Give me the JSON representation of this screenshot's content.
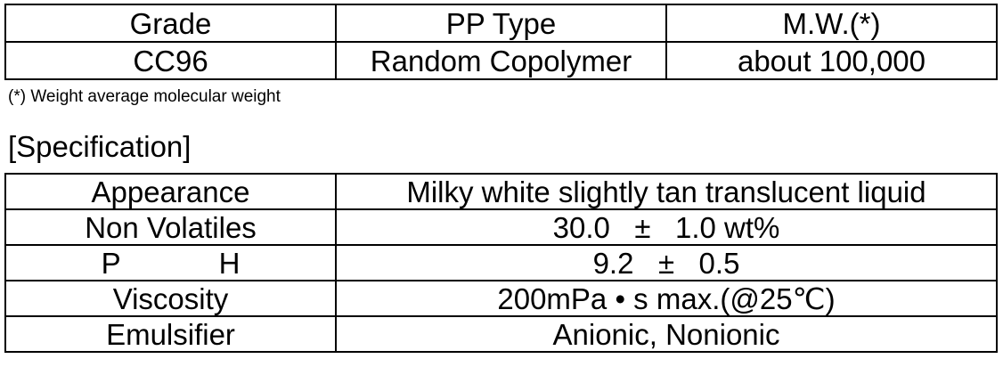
{
  "grade_table": {
    "headers": [
      "Grade",
      "PP Type",
      "M.W.(*)"
    ],
    "row": [
      "CC96",
      "Random Copolymer",
      "about 100,000"
    ]
  },
  "footnote": "(*) Weight average molecular weight",
  "section_heading": "[Specification]",
  "spec_table": {
    "rows": [
      {
        "label": "Appearance",
        "value": "Milky white slightly tan translucent liquid"
      },
      {
        "label": "Non Volatiles",
        "value": "30.0   ±   1.0 wt%"
      },
      {
        "label": "P            H",
        "value": "9.2   ±   0.5"
      },
      {
        "label": "Viscosity",
        "value": "200mPa • s max.(@25℃)"
      },
      {
        "label": "Emulsifier",
        "value": "Anionic, Nonionic"
      }
    ]
  }
}
